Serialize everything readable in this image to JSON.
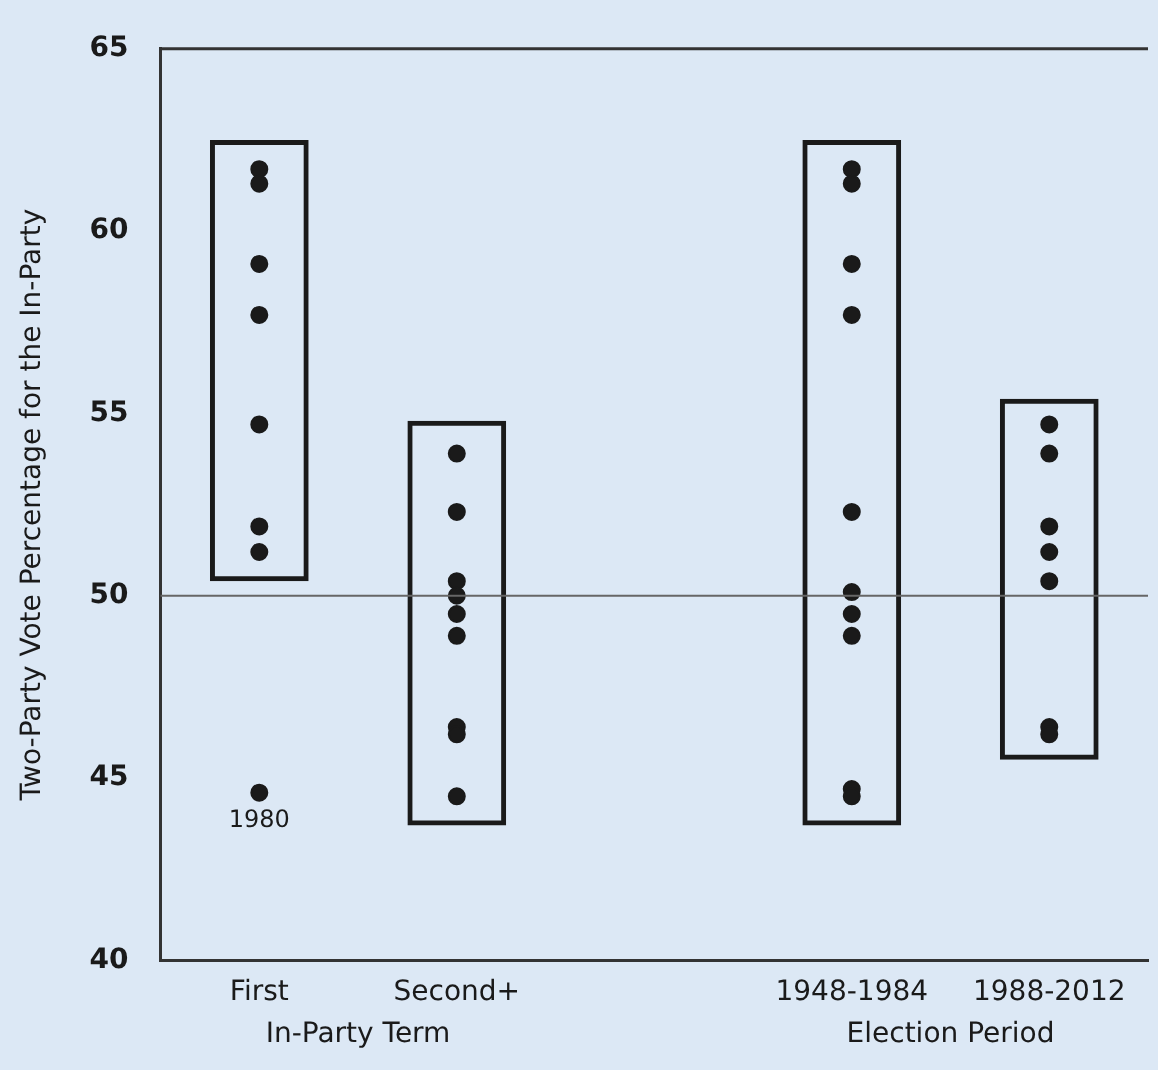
{
  "chart_data": {
    "type": "scatter",
    "ylabel": "Two-Party Vote Percentage for the In-Party",
    "categories": [
      "First",
      "Second+",
      null,
      "1948-1984",
      "1988-2012"
    ],
    "ylim": [
      40,
      65
    ],
    "yticks": [
      40,
      45,
      50,
      55,
      60,
      65
    ],
    "grid": false,
    "legend": false,
    "marker": "circle",
    "series": [
      {
        "type": "bar",
        "color": "#1a1a1a",
        "base": [
          50.4,
          43.7,
          null,
          43.7,
          45.5
        ],
        "values": [
          12.1,
          11.1,
          null,
          18.8,
          9.9
        ]
      },
      {
        "color": "#1a1a1a",
        "x": [
          "First",
          "First",
          "First",
          "First",
          "First",
          "First",
          "First",
          "First",
          "Second+",
          "Second+",
          "Second+",
          "Second+",
          "Second+",
          "Second+",
          "Second+",
          "Second+",
          "Second+"
        ],
        "values": [
          61.7,
          61.3,
          59.1,
          57.7,
          54.7,
          51.9,
          51.2,
          44.6,
          53.9,
          52.3,
          50.4,
          50.0,
          49.5,
          48.9,
          46.4,
          46.2,
          44.5
        ]
      },
      {
        "color": "#1a1a1a",
        "x": [
          "1948-1984",
          "1948-1984",
          "1948-1984",
          "1948-1984",
          "1948-1984",
          "1948-1984",
          "1948-1984",
          "1948-1984",
          "1948-1984",
          "1948-1984",
          "1988-2012",
          "1988-2012",
          "1988-2012",
          "1988-2012",
          "1988-2012",
          "1988-2012",
          "1988-2012"
        ],
        "values": [
          61.7,
          61.3,
          59.1,
          57.7,
          52.3,
          50.1,
          49.5,
          48.9,
          44.7,
          44.5,
          54.7,
          53.9,
          51.9,
          51.2,
          50.4,
          46.4,
          46.2
        ]
      }
    ],
    "ref_lines": [
      {
        "axis": "y",
        "value": 50,
        "color": "#666666"
      }
    ],
    "annotations": [
      {
        "text": "1980",
        "x": "First",
        "y": 44.6
      },
      "In-Party Term",
      "Election Period"
    ]
  }
}
